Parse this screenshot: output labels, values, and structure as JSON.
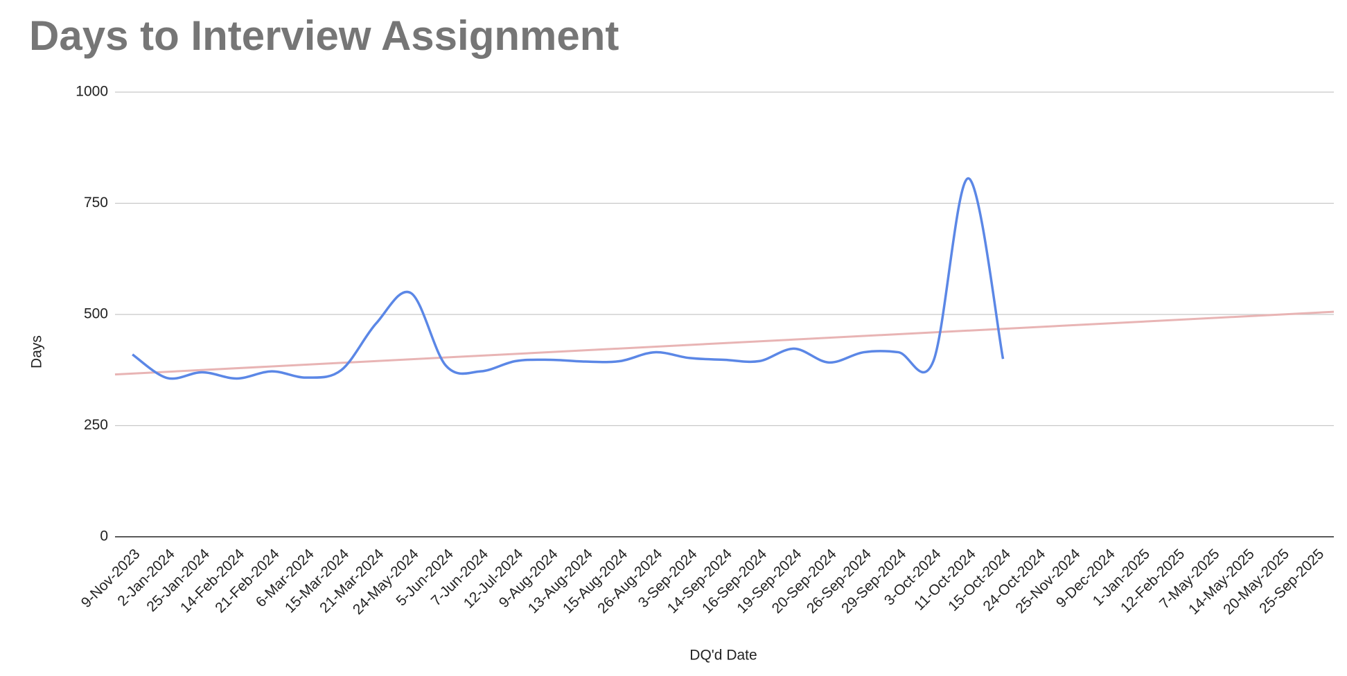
{
  "chart_data": {
    "type": "line",
    "title": "Days to Interview Assignment",
    "x_label": "DQ'd Date",
    "y_label": "Days",
    "categories": [
      "9-Nov-2023",
      "2-Jan-2024",
      "25-Jan-2024",
      "14-Feb-2024",
      "21-Feb-2024",
      "6-Mar-2024",
      "15-Mar-2024",
      "21-Mar-2024",
      "24-May-2024",
      "5-Jun-2024",
      "7-Jun-2024",
      "12-Jul-2024",
      "9-Aug-2024",
      "13-Aug-2024",
      "15-Aug-2024",
      "26-Aug-2024",
      "3-Sep-2024",
      "14-Sep-2024",
      "16-Sep-2024",
      "19-Sep-2024",
      "20-Sep-2024",
      "26-Sep-2024",
      "29-Sep-2024",
      "3-Oct-2024",
      "11-Oct-2024",
      "15-Oct-2024",
      "24-Oct-2024",
      "25-Nov-2024",
      "9-Dec-2024",
      "1-Jan-2025",
      "12-Feb-2025",
      "7-May-2025",
      "14-May-2025",
      "20-May-2025",
      "25-Sep-2025"
    ],
    "values": [
      410,
      357,
      370,
      356,
      372,
      358,
      375,
      480,
      548,
      385,
      372,
      395,
      398,
      394,
      395,
      415,
      402,
      398,
      395,
      423,
      392,
      415,
      415,
      395,
      806,
      400,
      null,
      null,
      null,
      null,
      null,
      null,
      null,
      null,
      null
    ],
    "color": "#5b87e6",
    "trendline": {
      "color": "#e8b4b4",
      "values": [
        367,
        504
      ]
    },
    "ylim": [
      0,
      1000
    ],
    "yticks": [
      0,
      250,
      500,
      750,
      1000
    ],
    "grid": true
  }
}
